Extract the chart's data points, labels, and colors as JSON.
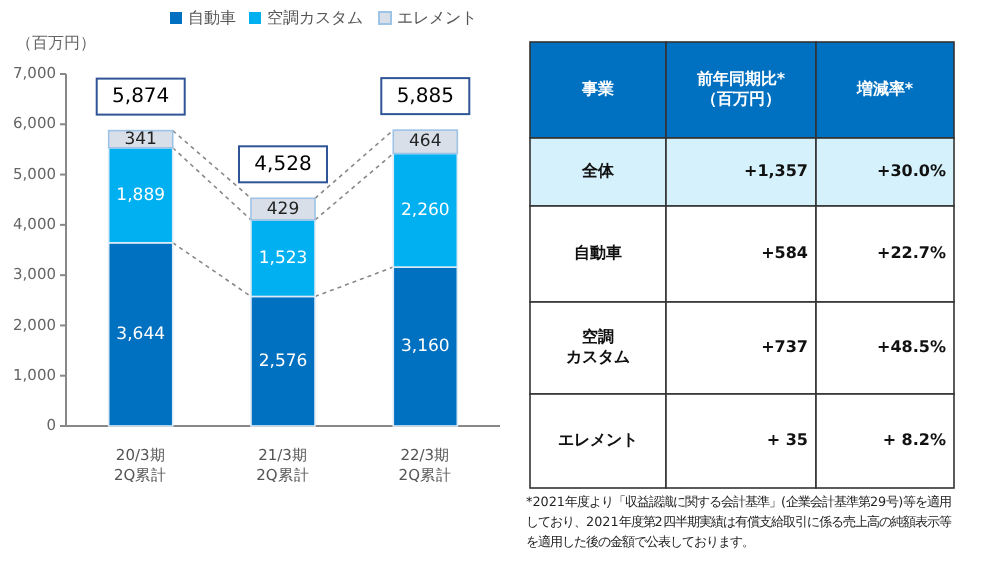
{
  "chart_data": [
    {
      "type": "bar",
      "stacked": true,
      "ylabel": "（百万円）",
      "categories": [
        "20/3期\n2Q累計",
        "21/3期\n2Q累計",
        "22/3期\n2Q累計"
      ],
      "series": [
        {
          "name": "自動車",
          "color": "#0070c0",
          "values": [
            3644,
            2576,
            3160
          ]
        },
        {
          "name": "空調カスタム",
          "color": "#00b0f0",
          "values": [
            1889,
            1523,
            2260
          ]
        },
        {
          "name": "エレメント",
          "color": "#d9dfe8",
          "values": [
            341,
            429,
            464
          ]
        }
      ],
      "ylim": [
        0,
        7000
      ],
      "yticks": [
        0,
        {
          "value": 1000,
          "label": "1,000"
        },
        {
          "value": 2000,
          "label": "2,000"
        },
        {
          "value": 3000,
          "label": "3,000"
        },
        {
          "value": 4000,
          "label": "4,000"
        },
        {
          "value": 5000,
          "label": "5,000"
        },
        {
          "value": 6000,
          "label": "6,000"
        },
        {
          "value": 7000,
          "label": "7,000"
        }
      ],
      "value_labels": [
        [
          "3,644",
          "2,576",
          "3,160"
        ],
        [
          "1,889",
          "1,523",
          "2,260"
        ],
        [
          "341",
          "429",
          "464"
        ]
      ],
      "totals": [
        "5,874",
        "4,528",
        "5,885"
      ],
      "legend": "top",
      "grid": false
    },
    {
      "type": "other",
      "annotations": [
        "事業",
        "前年同期比*（百万円）",
        "増減率*",
        "全体",
        "+1,357",
        "+30.0%",
        "自動車",
        "+584",
        "+22.7%",
        "空調カスタム",
        "+737",
        "+48.5%",
        "エレメント",
        "+ 35",
        "+ 8.2%",
        "*2021年度より「収益認識に関する会計基準」(企業会計基準第29号)等を適用しており、2021年度第2四半期実績は有償支給取引に係る売上高の純額表示等を適用した後の金額で公表しております。"
      ]
    }
  ]
}
